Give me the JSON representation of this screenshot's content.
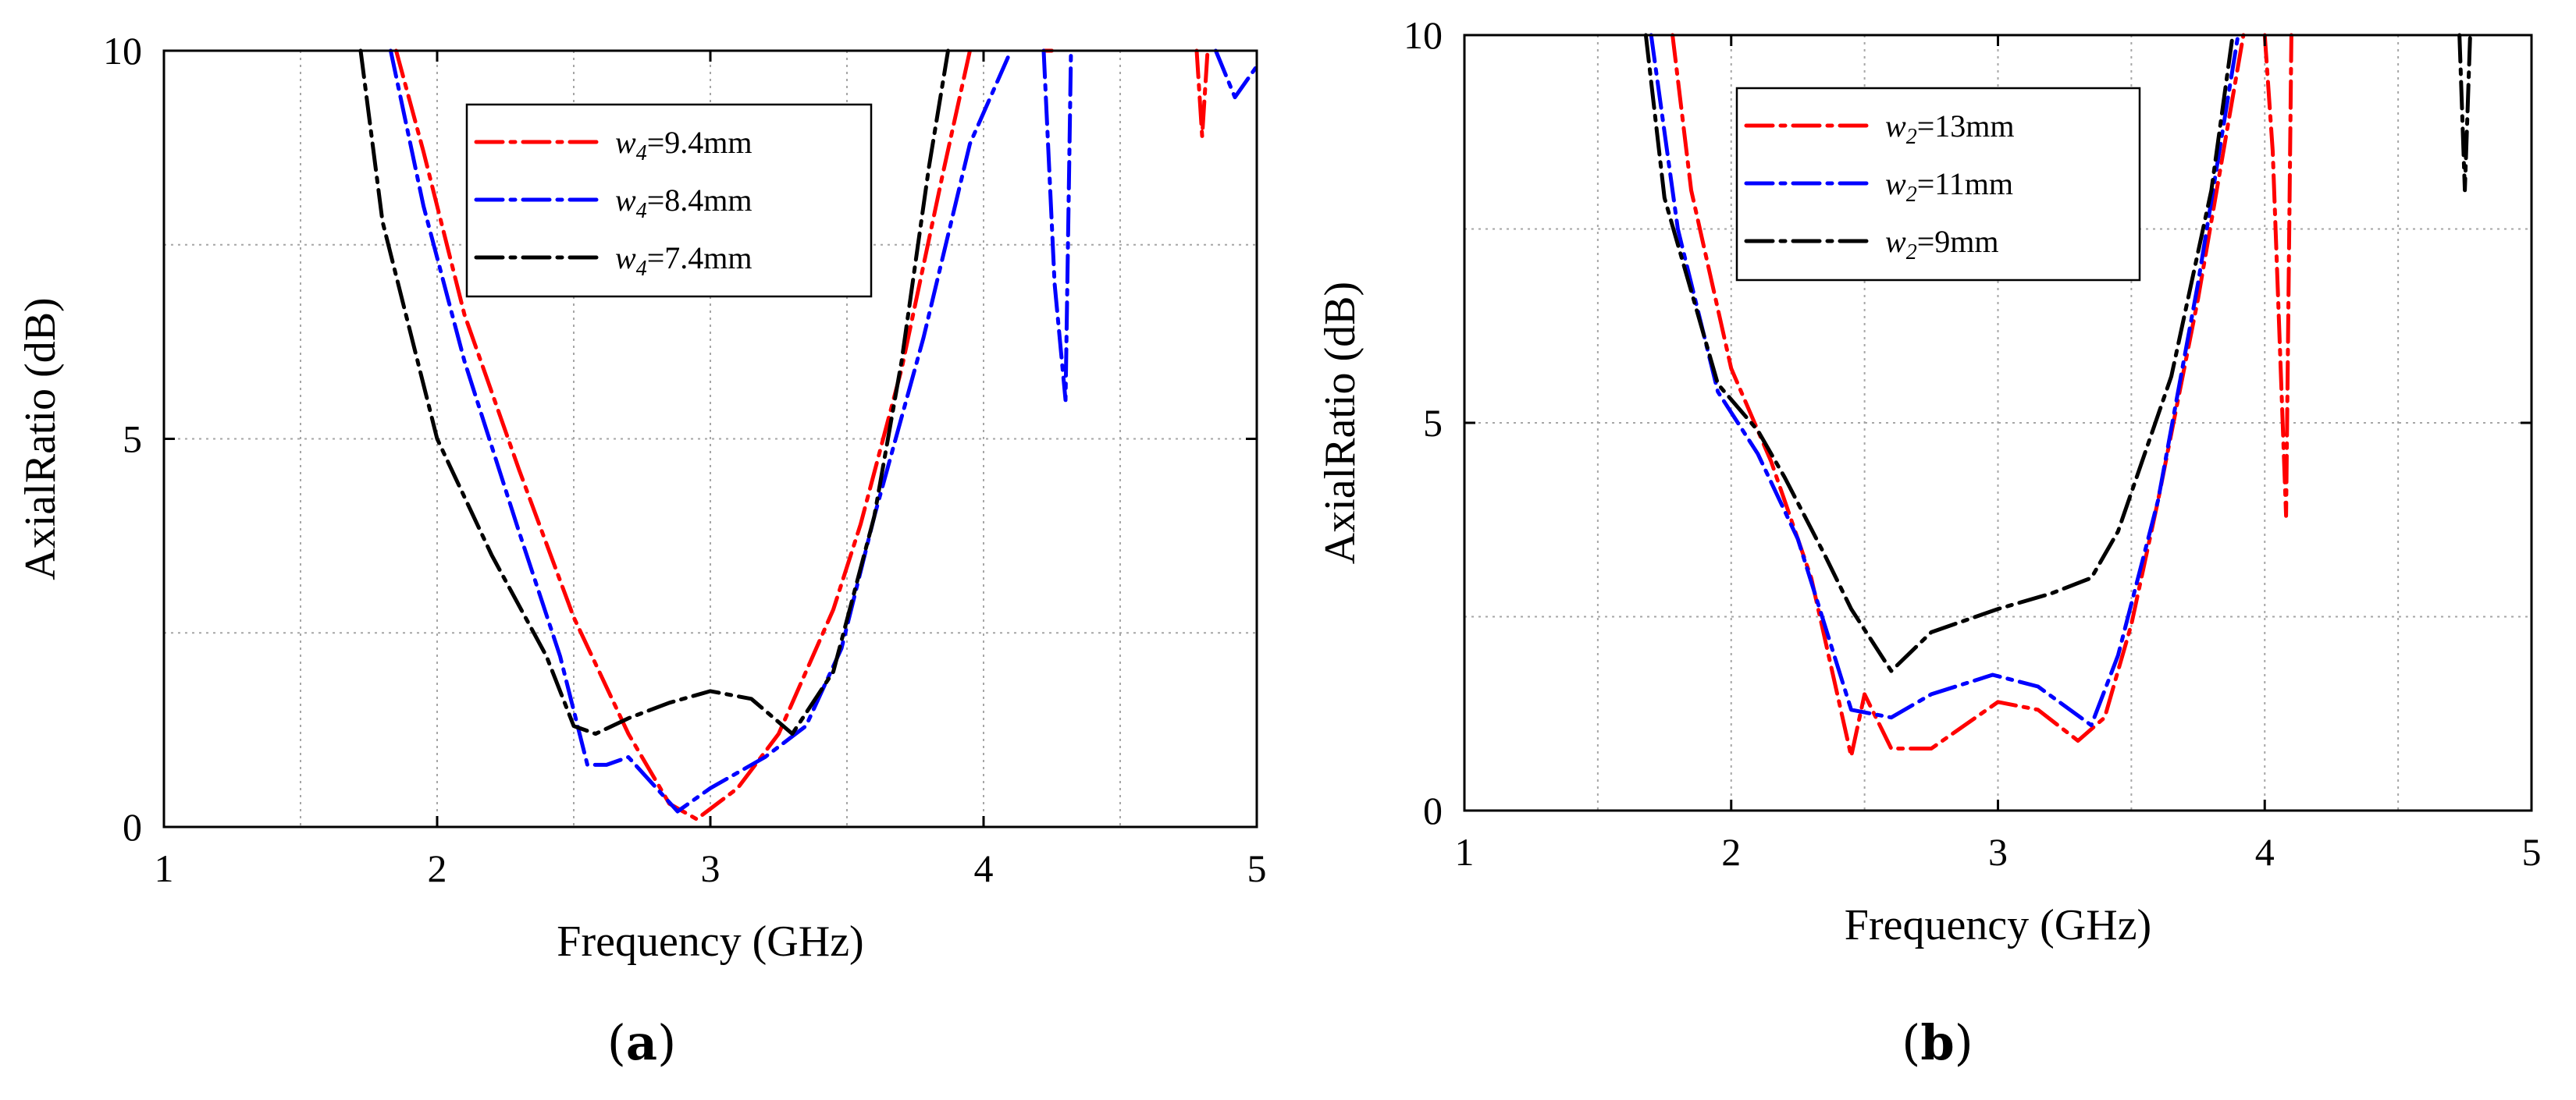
{
  "chart_data": [
    {
      "type": "line",
      "panel": "a",
      "caption_open": "(",
      "caption_letter": "a",
      "caption_close": ")",
      "xlabel": "Frequency (GHz)",
      "ylabel": "AxialRatio (dB)",
      "xlim": [
        1,
        5
      ],
      "ylim": [
        0,
        10
      ],
      "xticks": [
        1,
        2,
        3,
        4,
        5
      ],
      "yticks": [
        0,
        5,
        10
      ],
      "xticklabels": [
        "1",
        "2",
        "3",
        "4",
        "5"
      ],
      "yticklabels": [
        "0",
        "5",
        "10"
      ],
      "grid": true,
      "legend_position": "top-center",
      "series": [
        {
          "name": "w4=9.4mm",
          "var": "w",
          "sub": "4",
          "value": "=9.4mm",
          "color": "#ff0000",
          "segments": [
            [
              [
                1.85,
                10
              ],
              [
                1.95,
                8.7
              ],
              [
                2.1,
                6.6
              ],
              [
                2.3,
                4.6
              ],
              [
                2.5,
                2.7
              ],
              [
                2.7,
                1.2
              ],
              [
                2.85,
                0.3
              ],
              [
                2.95,
                0.1
              ],
              [
                3.1,
                0.5
              ],
              [
                3.25,
                1.2
              ],
              [
                3.35,
                2.0
              ],
              [
                3.45,
                2.8
              ],
              [
                3.55,
                3.9
              ],
              [
                3.7,
                5.9
              ],
              [
                3.85,
                8.4
              ],
              [
                3.95,
                10
              ]
            ],
            [
              [
                4.22,
                10
              ],
              [
                4.25,
                10
              ]
            ],
            [
              [
                4.78,
                10
              ],
              [
                4.8,
                8.9
              ],
              [
                4.82,
                10
              ]
            ]
          ]
        },
        {
          "name": "w4=8.4mm",
          "var": "w",
          "sub": "4",
          "value": "=8.4mm",
          "color": "#0000ff",
          "segments": [
            [
              [
                1.83,
                10
              ],
              [
                1.95,
                8.0
              ],
              [
                2.1,
                6.0
              ],
              [
                2.3,
                3.8
              ],
              [
                2.45,
                2.2
              ],
              [
                2.55,
                0.8
              ],
              [
                2.62,
                0.8
              ],
              [
                2.7,
                0.9
              ],
              [
                2.88,
                0.2
              ],
              [
                3.0,
                0.5
              ],
              [
                3.2,
                0.9
              ],
              [
                3.35,
                1.3
              ],
              [
                3.48,
                2.3
              ],
              [
                3.6,
                4.0
              ],
              [
                3.78,
                6.3
              ],
              [
                3.95,
                8.8
              ],
              [
                4.1,
                10
              ]
            ],
            [
              [
                4.22,
                10
              ],
              [
                4.26,
                7.0
              ],
              [
                4.3,
                5.5
              ],
              [
                4.32,
                10
              ]
            ],
            [
              [
                4.85,
                10
              ],
              [
                4.92,
                9.4
              ],
              [
                5.0,
                9.8
              ]
            ]
          ]
        },
        {
          "name": "w4=7.4mm",
          "var": "w",
          "sub": "4",
          "value": "=7.4mm",
          "color": "#000000",
          "segments": [
            [
              [
                1.72,
                10
              ],
              [
                1.8,
                7.8
              ],
              [
                2.0,
                5.0
              ],
              [
                2.2,
                3.5
              ],
              [
                2.4,
                2.2
              ],
              [
                2.5,
                1.3
              ],
              [
                2.58,
                1.2
              ],
              [
                2.7,
                1.4
              ],
              [
                2.85,
                1.6
              ],
              [
                3.0,
                1.75
              ],
              [
                3.15,
                1.65
              ],
              [
                3.3,
                1.2
              ],
              [
                3.45,
                2.0
              ],
              [
                3.6,
                4.0
              ],
              [
                3.7,
                6.0
              ],
              [
                3.8,
                8.5
              ],
              [
                3.87,
                10
              ]
            ]
          ]
        }
      ]
    },
    {
      "type": "line",
      "panel": "b",
      "caption_open": "(",
      "caption_letter": "b",
      "caption_close": ")",
      "xlabel": "Frequency (GHz)",
      "ylabel": "AxialRatio (dB)",
      "xlim": [
        1,
        5
      ],
      "ylim": [
        0,
        10
      ],
      "xticks": [
        1,
        2,
        3,
        4,
        5
      ],
      "yticks": [
        0,
        5,
        10
      ],
      "xticklabels": [
        "1",
        "2",
        "3",
        "4",
        "5"
      ],
      "yticklabels": [
        "0",
        "5",
        "10"
      ],
      "grid": true,
      "legend_position": "top-left",
      "series": [
        {
          "name": "w2=13mm",
          "var": "w",
          "sub": "2",
          "value": "=13mm",
          "color": "#ff0000",
          "segments": [
            [
              [
                1.78,
                10
              ],
              [
                1.85,
                8.0
              ],
              [
                2.0,
                5.7
              ],
              [
                2.15,
                4.5
              ],
              [
                2.3,
                3.0
              ],
              [
                2.45,
                0.7
              ],
              [
                2.5,
                1.5
              ],
              [
                2.6,
                0.8
              ],
              [
                2.75,
                0.8
              ],
              [
                3.0,
                1.4
              ],
              [
                3.15,
                1.3
              ],
              [
                3.3,
                0.9
              ],
              [
                3.4,
                1.2
              ],
              [
                3.5,
                2.4
              ],
              [
                3.6,
                4.0
              ],
              [
                3.75,
                6.6
              ],
              [
                3.92,
                10
              ]
            ],
            [
              [
                4.0,
                10
              ],
              [
                4.03,
                8.5
              ],
              [
                4.08,
                3.8
              ],
              [
                4.1,
                10
              ]
            ]
          ]
        },
        {
          "name": "w2=11mm",
          "var": "w",
          "sub": "2",
          "value": "=11mm",
          "color": "#0000ff",
          "segments": [
            [
              [
                1.7,
                10
              ],
              [
                1.8,
                7.5
              ],
              [
                1.95,
                5.4
              ],
              [
                2.1,
                4.6
              ],
              [
                2.25,
                3.5
              ],
              [
                2.45,
                1.3
              ],
              [
                2.6,
                1.2
              ],
              [
                2.75,
                1.5
              ],
              [
                2.98,
                1.75
              ],
              [
                3.15,
                1.6
              ],
              [
                3.35,
                1.1
              ],
              [
                3.45,
                2.0
              ],
              [
                3.6,
                4.0
              ],
              [
                3.75,
                6.8
              ],
              [
                3.9,
                10
              ]
            ]
          ]
        },
        {
          "name": "w2=9mm",
          "var": "w",
          "sub": "2",
          "value": "=9mm",
          "color": "#000000",
          "segments": [
            [
              [
                1.68,
                10
              ],
              [
                1.75,
                7.9
              ],
              [
                1.95,
                5.5
              ],
              [
                2.1,
                4.9
              ],
              [
                2.2,
                4.3
              ],
              [
                2.35,
                3.3
              ],
              [
                2.45,
                2.6
              ],
              [
                2.6,
                1.8
              ],
              [
                2.75,
                2.3
              ],
              [
                3.0,
                2.6
              ],
              [
                3.2,
                2.8
              ],
              [
                3.35,
                3.0
              ],
              [
                3.45,
                3.6
              ],
              [
                3.65,
                5.6
              ],
              [
                3.8,
                8.0
              ],
              [
                3.88,
                10
              ]
            ],
            [
              [
                4.73,
                10
              ],
              [
                4.75,
                8.0
              ],
              [
                4.77,
                10
              ]
            ]
          ]
        }
      ]
    }
  ]
}
